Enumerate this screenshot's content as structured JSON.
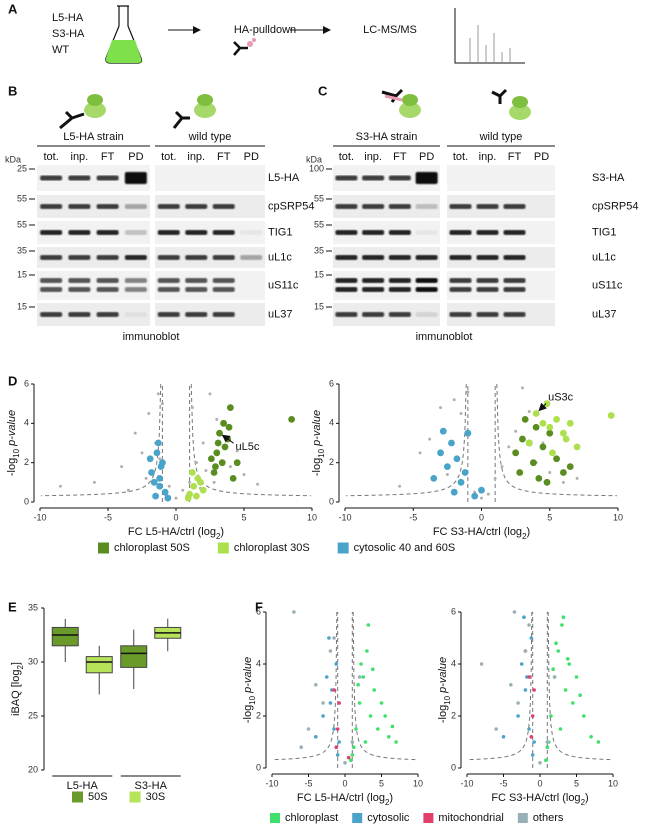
{
  "panel_labels": [
    "A",
    "B",
    "C",
    "D",
    "E",
    "F"
  ],
  "workflow": {
    "samples": [
      "L5-HA",
      "S3-HA",
      "WT"
    ],
    "step1": "HA-pulldown",
    "step2": "LC-MS/MS"
  },
  "blots": [
    {
      "strain": "L5-HA strain",
      "control": "wild type",
      "lanes": [
        "tot.",
        "inp.",
        "FT",
        "PD"
      ],
      "kda_label": "kDa",
      "footer": "immunoblot",
      "rows": [
        {
          "kda": "25",
          "protein": "L5-HA"
        },
        {
          "kda": "55",
          "protein": "cpSRP54"
        },
        {
          "kda": "55",
          "protein": "TIG1"
        },
        {
          "kda": "35",
          "protein": "uL1c"
        },
        {
          "kda": "15",
          "protein": "uS11c"
        },
        {
          "kda": "15",
          "protein": "uL37"
        }
      ]
    },
    {
      "strain": "S3-HA strain",
      "control": "wild type",
      "lanes": [
        "tot.",
        "inp.",
        "FT",
        "PD"
      ],
      "kda_label": "kDa",
      "footer": "immunoblot",
      "rows": [
        {
          "kda": "100",
          "protein": "S3-HA"
        },
        {
          "kda": "55",
          "protein": "cpSRP54"
        },
        {
          "kda": "55",
          "protein": "TIG1"
        },
        {
          "kda": "35",
          "protein": "uL1c"
        },
        {
          "kda": "15",
          "protein": "uS11c"
        },
        {
          "kda": "15",
          "protein": "uL37"
        }
      ]
    }
  ],
  "chart_data": [
    {
      "type": "scatter",
      "x_label": [
        "FC L5-HA/ctrl (log",
        "2",
        ")"
      ],
      "y_label": [
        "-log",
        "10",
        "p-value"
      ],
      "xlim": [
        -10,
        10
      ],
      "ylim": [
        0,
        6
      ],
      "xticks": [
        -10,
        -5,
        0,
        5,
        10
      ],
      "yticks": [
        0,
        2,
        4,
        6
      ],
      "annotation": "uL5c",
      "series": [
        {
          "color": "#b0b0b0",
          "x": [
            -8.5,
            -6,
            -4,
            -3,
            -2.5,
            -2,
            -1.8,
            -1.5,
            -1.2,
            -1,
            -0.5,
            0,
            0.5,
            1,
            1.5,
            2,
            2.5,
            3,
            3.5,
            4,
            4.5,
            5,
            6,
            -3.5,
            -2.2,
            2.2,
            1.2,
            -1.3,
            0.8,
            -0.8,
            2.8,
            1.8
          ],
          "values": [
            0.8,
            1.0,
            1.8,
            3.5,
            2.5,
            4.5,
            1.5,
            3.0,
            2.2,
            5.0,
            0.8,
            0.2,
            0.6,
            1.0,
            2.0,
            3.0,
            5.5,
            4.2,
            2.8,
            1.8,
            2.6,
            1.4,
            0.9,
            0.6,
            1.2,
            1.6,
            4.8,
            5.5,
            0.3,
            0.4,
            1.0,
            0.7
          ]
        },
        {
          "name": "chloroplast 50S",
          "color": "#5b8c1f",
          "x": [
            3,
            3.2,
            3.5,
            3.8,
            4,
            3.4,
            2.8,
            3.6,
            4.2,
            2.6,
            3.1,
            8.5,
            3.9,
            4.5,
            2.9
          ],
          "values": [
            2.5,
            3.5,
            4.0,
            3.2,
            4.8,
            2.0,
            1.5,
            2.8,
            1.2,
            2.2,
            3.0,
            4.2,
            3.8,
            2.0,
            1.8
          ]
        },
        {
          "name": "chloroplast 30S",
          "color": "#aee04e",
          "x": [
            1,
            1.3,
            1.6,
            2,
            1.2,
            1.8,
            0.9,
            1.5
          ],
          "values": [
            0.4,
            0.8,
            1.2,
            0.6,
            1.5,
            1.0,
            0.2,
            0.3
          ]
        },
        {
          "name": "cytosolic 40 and 60S",
          "color": "#4aa3c8",
          "x": [
            -1.5,
            -1.2,
            -1.8,
            -1,
            -1.4,
            -0.8,
            -1.6,
            -1.1,
            -1.3,
            -0.6,
            -1.9,
            -1.2
          ],
          "values": [
            0.3,
            0.8,
            1.5,
            2.0,
            2.5,
            0.5,
            1.0,
            1.8,
            3.0,
            0.2,
            2.2,
            1.2
          ]
        }
      ]
    },
    {
      "type": "scatter",
      "x_label": [
        "FC S3-HA/ctrl (log",
        "2",
        ")"
      ],
      "y_label": [
        "-log",
        "10",
        "p-value"
      ],
      "xlim": [
        -10,
        10
      ],
      "ylim": [
        0,
        6
      ],
      "xticks": [
        -10,
        -5,
        0,
        5,
        10
      ],
      "yticks": [
        0,
        2,
        4,
        6
      ],
      "annotation": "uS3c",
      "series": [
        {
          "color": "#b0b0b0",
          "x": [
            -6,
            -4.5,
            -3,
            -2,
            -1,
            0,
            1,
            2,
            3,
            4,
            5,
            6,
            -3.8,
            -1.5,
            0.5,
            1.5,
            2.5,
            3.5,
            -0.5,
            4.5,
            7,
            -2.5
          ],
          "values": [
            0.8,
            2.5,
            4.8,
            5.2,
            5.6,
            0.2,
            1.2,
            2.8,
            5.8,
            2.0,
            1.5,
            1.0,
            3.2,
            4.5,
            0.4,
            1.8,
            3.6,
            4.6,
            0.5,
            3.0,
            1.2,
            1.4
          ]
        },
        {
          "name": "chloroplast 50S",
          "color": "#5b8c1f",
          "x": [
            3,
            3.5,
            4,
            4.5,
            5,
            3.8,
            2.8,
            4.2,
            5.5,
            6,
            3.2,
            4.8,
            6.5,
            2.5
          ],
          "values": [
            3.2,
            3.0,
            3.8,
            2.8,
            3.5,
            2.0,
            1.5,
            1.2,
            2.2,
            1.5,
            4.2,
            1.0,
            1.8,
            2.5
          ]
        },
        {
          "name": "chloroplast 30S",
          "color": "#aee04e",
          "x": [
            4,
            4.5,
            5,
            5.5,
            6,
            6.5,
            7,
            9.5,
            3.5,
            5.2,
            4.8,
            6.2
          ],
          "values": [
            4.5,
            4.0,
            3.8,
            4.2,
            3.5,
            4.0,
            2.8,
            4.4,
            3.0,
            2.5,
            5.0,
            3.2
          ]
        },
        {
          "name": "cytosolic 40 and 60S",
          "color": "#4aa3c8",
          "x": [
            -2,
            -1.5,
            -3,
            -2.5,
            -1,
            -0.5,
            -2.2,
            -1.8,
            0,
            -3.5,
            -1.2,
            -2.8
          ],
          "values": [
            0.5,
            1.0,
            2.5,
            1.8,
            3.5,
            0.3,
            3.0,
            2.2,
            0.6,
            1.2,
            1.5,
            3.6
          ]
        }
      ]
    },
    {
      "type": "box",
      "y_label": [
        "iBAQ [log",
        "2",
        "]"
      ],
      "categories": [
        "L5-HA",
        "S3-HA"
      ],
      "ylim": [
        20,
        35
      ],
      "yticks": [
        20,
        25,
        30,
        35
      ],
      "series": [
        {
          "name": "50S",
          "color": "#6a9a2a",
          "boxes": [
            {
              "min": 30,
              "q1": 31.5,
              "median": 32.5,
              "q3": 33.2,
              "max": 34
            },
            {
              "min": 27.5,
              "q1": 29.5,
              "median": 30.8,
              "q3": 31.5,
              "max": 33
            }
          ]
        },
        {
          "name": "30S",
          "color": "#b6e35a",
          "boxes": [
            {
              "min": 27,
              "q1": 29,
              "median": 30,
              "q3": 30.5,
              "max": 31.5
            },
            {
              "min": 31,
              "q1": 32.2,
              "median": 32.7,
              "q3": 33.2,
              "max": 34
            }
          ]
        }
      ]
    },
    {
      "type": "scatter",
      "small": true,
      "x_label": [
        "FC L5-HA/ctrl (log",
        "2",
        ")"
      ],
      "y_label": [
        "-log",
        "10",
        "p-value"
      ],
      "xlim": [
        -10,
        10
      ],
      "ylim": [
        0,
        6
      ],
      "xticks": [
        -10,
        -5,
        0,
        5,
        10
      ],
      "yticks": [
        0,
        2,
        4,
        6
      ],
      "series": [
        {
          "name": "chloroplast",
          "color": "#3fe06a",
          "x": [
            1,
            1.5,
            2,
            2.5,
            3,
            3.5,
            4,
            4.5,
            5,
            6,
            7,
            1.2,
            2.2,
            3.2,
            0.8,
            5.5,
            2.8,
            3.8,
            1.8,
            6.5
          ],
          "values": [
            0.5,
            1.5,
            2.5,
            3.5,
            4.5,
            2.0,
            3.0,
            1.5,
            2.5,
            1.2,
            1.0,
            0.8,
            4.0,
            5.5,
            0.3,
            2.0,
            1.0,
            3.8,
            3.2,
            1.6
          ]
        },
        {
          "name": "cytosolic",
          "color": "#4aa3c8",
          "x": [
            -1,
            -1.5,
            -2,
            -2.5,
            -3,
            -1.2,
            -0.8,
            -1.8,
            -4,
            -2.2
          ],
          "values": [
            0.5,
            1.5,
            2.5,
            3.5,
            2.0,
            4.0,
            1.0,
            3.0,
            1.2,
            5.0
          ]
        },
        {
          "name": "mitochondrial",
          "color": "#e0406a",
          "x": [
            -1,
            -0.8,
            -1.5,
            -1.2,
            0.5
          ],
          "values": [
            1.5,
            2.5,
            3.0,
            0.8,
            0.4
          ]
        },
        {
          "name": "others",
          "color": "#9ab0b8",
          "x": [
            -3,
            -5,
            -2,
            0,
            1,
            -7,
            -1.5,
            2,
            -4,
            -6
          ],
          "values": [
            2.5,
            1.5,
            4.5,
            0.2,
            1.0,
            6.0,
            5.0,
            3.5,
            3.2,
            0.8
          ]
        }
      ]
    },
    {
      "type": "scatter",
      "small": true,
      "x_label": [
        "FC S3-HA/ctrl (log",
        "2",
        ")"
      ],
      "y_label": [
        "-log",
        "10",
        "p-value"
      ],
      "xlim": [
        -10,
        10
      ],
      "ylim": [
        0,
        6
      ],
      "xticks": [
        -10,
        -5,
        0,
        5,
        10
      ],
      "yticks": [
        0,
        2,
        4,
        6
      ],
      "series": [
        {
          "name": "chloroplast",
          "color": "#3fe06a",
          "x": [
            1,
            1.5,
            2,
            2.5,
            3,
            3.5,
            4,
            4.5,
            5,
            6,
            7,
            1.2,
            2.2,
            3.2,
            0.8,
            5.5,
            2.8,
            3.8,
            1.8,
            8
          ],
          "values": [
            0.8,
            2.0,
            3.5,
            4.5,
            5.5,
            3.0,
            4.0,
            2.5,
            3.5,
            2.0,
            1.2,
            1.0,
            4.8,
            5.8,
            0.3,
            2.8,
            1.5,
            4.2,
            3.8,
            1.0
          ]
        },
        {
          "name": "cytosolic",
          "color": "#4aa3c8",
          "x": [
            -1,
            -1.5,
            -2,
            -2.5,
            -3,
            -1.2,
            -0.8,
            -1.8,
            -5,
            -2.2
          ],
          "values": [
            0.5,
            1.5,
            3.0,
            4.0,
            2.0,
            5.0,
            1.0,
            3.5,
            1.2,
            5.8
          ]
        },
        {
          "name": "mitochondrial",
          "color": "#e0406a",
          "x": [
            -1,
            -0.8,
            -1.5,
            -1.2,
            -2
          ],
          "values": [
            2,
            3,
            3.5,
            1.2,
            4.5
          ]
        },
        {
          "name": "others",
          "color": "#9ab0b8",
          "x": [
            -3,
            -6,
            -2,
            0,
            1,
            -8,
            -1.5,
            2,
            -4,
            -3.5
          ],
          "values": [
            2.5,
            1.5,
            4.5,
            0.2,
            1.0,
            4.0,
            5.5,
            3.5,
            3.2,
            6.0
          ]
        }
      ]
    }
  ]
}
